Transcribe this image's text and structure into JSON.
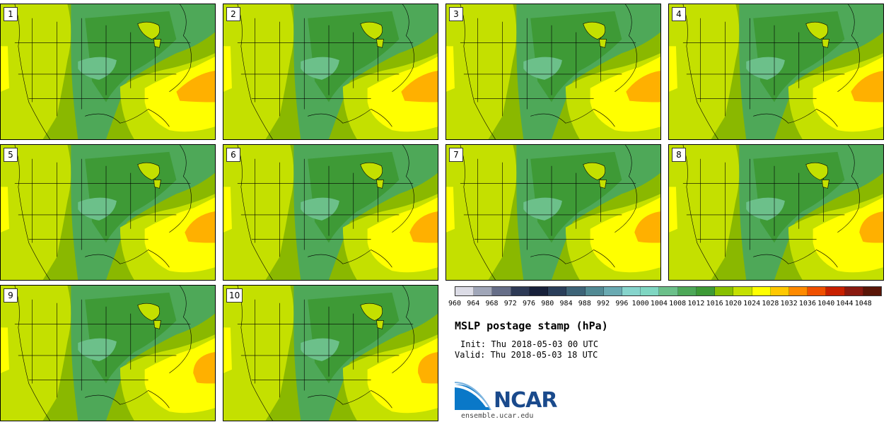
{
  "panels": [
    {
      "label": "1"
    },
    {
      "label": "2"
    },
    {
      "label": "3"
    },
    {
      "label": "4"
    },
    {
      "label": "5"
    },
    {
      "label": "6"
    },
    {
      "label": "7"
    },
    {
      "label": "8"
    },
    {
      "label": "9"
    },
    {
      "label": "10"
    }
  ],
  "colorbar": {
    "ticks": [
      "960",
      "964",
      "968",
      "972",
      "976",
      "980",
      "984",
      "988",
      "992",
      "996",
      "1000",
      "1004",
      "1008",
      "1012",
      "1016",
      "1020",
      "1024",
      "1028",
      "1032",
      "1036",
      "1040",
      "1044",
      "1048"
    ],
    "colors": [
      "#dcdce6",
      "#a0a6b8",
      "#666e88",
      "#2e3a56",
      "#17203a",
      "#2a3e5a",
      "#3e6478",
      "#528a94",
      "#6aaab2",
      "#86d4cc",
      "#7fd6c2",
      "#6cc08a",
      "#4ea858",
      "#3e9a36",
      "#88c000",
      "#c4e000",
      "#ffff00",
      "#ffc800",
      "#ff8a00",
      "#f05000",
      "#c82000",
      "#8a1a10",
      "#5a1608"
    ]
  },
  "title": "MSLP postage stamp (hPa)",
  "init": "Init: Thu 2018-05-03 00 UTC",
  "valid": "Valid: Thu 2018-05-03 18 UTC",
  "logo": {
    "text": "NCAR",
    "url": "ensemble.ucar.edu"
  },
  "map_colors": {
    "bg": "#8ab800",
    "light_green": "#c4e000",
    "dark_green": "#3e9a36",
    "mid_green": "#4ea858",
    "light_teal": "#6cc08a",
    "yellow": "#ffff00",
    "orange": "#ffb000"
  }
}
